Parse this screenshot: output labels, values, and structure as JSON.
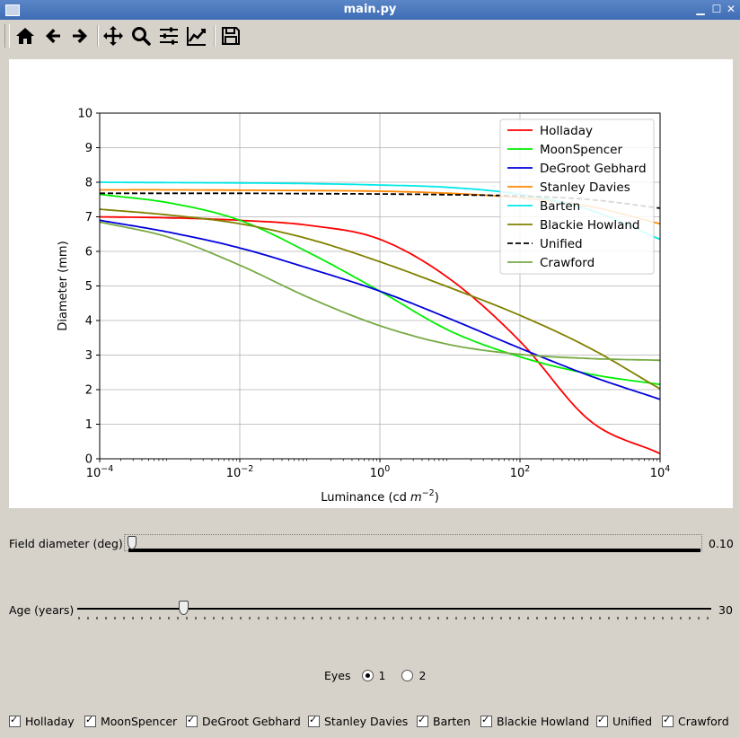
{
  "window": {
    "title": "main.py"
  },
  "toolbar": {
    "buttons": [
      "home-icon",
      "back-icon",
      "forward-icon",
      "pan-icon",
      "zoom-icon",
      "configure-subplots-icon",
      "edit-axis-icon",
      "save-icon"
    ]
  },
  "chart_data": {
    "type": "line",
    "xlabel": "Luminance (cd m^-2)",
    "ylabel": "Diameter (mm)",
    "xscale": "log",
    "xlim": [
      0.0001,
      10000
    ],
    "ylim": [
      0,
      10
    ],
    "xticks": [
      "10^-4",
      "10^-2",
      "10^0",
      "10^2",
      "10^4"
    ],
    "yticks": [
      0,
      1,
      2,
      3,
      4,
      5,
      6,
      7,
      8,
      9,
      10
    ],
    "grid": true,
    "legend": "top-right",
    "x": [
      0.0001,
      0.001,
      0.01,
      0.1,
      1,
      10,
      100,
      1000,
      10000
    ],
    "series": [
      {
        "name": "Holladay",
        "color": "#ff0000",
        "dashed": false,
        "values": [
          7.0,
          6.97,
          6.9,
          6.75,
          6.35,
          5.2,
          3.4,
          1.1,
          0.15
        ]
      },
      {
        "name": "MoonSpencer",
        "color": "#00ee00",
        "dashed": false,
        "values": [
          7.65,
          7.4,
          6.9,
          5.95,
          4.85,
          3.7,
          2.95,
          2.45,
          2.15
        ]
      },
      {
        "name": "DeGroot Gebhard",
        "color": "#0000dd",
        "dashed": false,
        "values": [
          6.9,
          6.55,
          6.1,
          5.5,
          4.85,
          4.05,
          3.2,
          2.4,
          1.72
        ]
      },
      {
        "name": "Stanley Davies",
        "color": "#ff8800",
        "dashed": false,
        "values": [
          7.78,
          7.78,
          7.77,
          7.76,
          7.74,
          7.68,
          7.55,
          7.3,
          6.8
        ]
      },
      {
        "name": "Barten",
        "color": "#00e8e8",
        "dashed": false,
        "values": [
          8.0,
          7.99,
          7.98,
          7.96,
          7.92,
          7.85,
          7.65,
          7.2,
          6.35
        ]
      },
      {
        "name": "Blackie Howland",
        "color": "#808000",
        "dashed": false,
        "values": [
          7.22,
          7.05,
          6.8,
          6.35,
          5.7,
          4.95,
          4.15,
          3.2,
          2.02
        ]
      },
      {
        "name": "Unified",
        "color": "#000000",
        "dashed": true,
        "values": [
          7.68,
          7.68,
          7.68,
          7.67,
          7.66,
          7.64,
          7.6,
          7.5,
          7.25
        ]
      },
      {
        "name": "Crawford",
        "color": "#77aa44",
        "dashed": false,
        "values": [
          6.85,
          6.4,
          5.6,
          4.65,
          3.85,
          3.3,
          3.02,
          2.9,
          2.85
        ]
      }
    ]
  },
  "controls": {
    "field_diameter": {
      "label": "Field diameter (deg)",
      "value": "0.10",
      "fraction": 0.0
    },
    "age": {
      "label": "Age (years)",
      "value": "30",
      "fraction": 0.16
    },
    "eyes": {
      "label": "Eyes",
      "options": [
        "1",
        "2"
      ],
      "selected": "1"
    },
    "checkboxes": [
      "Holladay",
      "MoonSpencer",
      "DeGroot Gebhard",
      "Stanley Davies",
      "Barten",
      "Blackie Howland",
      "Unified",
      "Crawford"
    ]
  }
}
